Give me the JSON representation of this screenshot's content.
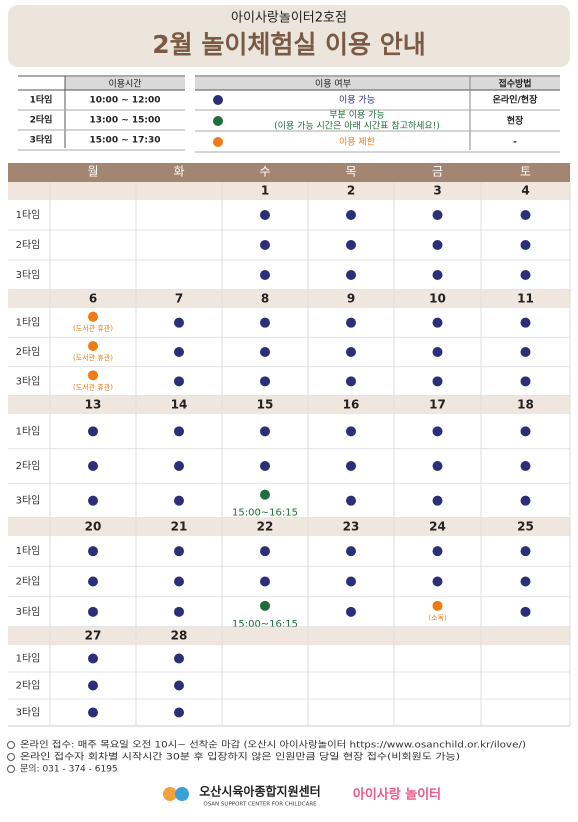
{
  "header": {
    "subtitle": "아이사랑놀이터2호점",
    "title": "2월 놀이체험실 이용 안내"
  },
  "time_table": {
    "header": "이용시간",
    "rows": [
      [
        "1타임",
        "10:00 ~ 12:00"
      ],
      [
        "2타임",
        "13:00 ~ 15:00"
      ],
      [
        "3타임",
        "15:00 ~ 17:30"
      ]
    ]
  },
  "legend": {
    "headers": [
      "이용 여부",
      "접수방법"
    ],
    "items": [
      {
        "label": "이용 가능",
        "color": "#2b2f7a",
        "method": "온라인/현장"
      },
      {
        "label": "부분 이용 가능",
        "note": "(이용 가능 시간은 아래 시간표 참고하세요!)",
        "color": "#1f6e3c",
        "method": "현장"
      },
      {
        "label": "이용 제한",
        "color": "#f07a14",
        "method": "-"
      }
    ]
  },
  "calendar": {
    "weekdays": [
      "월",
      "화",
      "수",
      "목",
      "금",
      "토"
    ],
    "slot_labels": [
      "1타임",
      "2타임",
      "3타임"
    ],
    "weeks": [
      {
        "days": [
          {
            "date": null,
            "slots": [
              null,
              null,
              null
            ]
          },
          {
            "date": null,
            "slots": [
              null,
              null,
              null
            ]
          },
          {
            "date": 1,
            "slots": [
              0,
              0,
              0
            ]
          },
          {
            "date": 2,
            "slots": [
              0,
              0,
              0
            ]
          },
          {
            "date": 3,
            "slots": [
              0,
              0,
              0
            ]
          },
          {
            "date": 4,
            "slots": [
              0,
              0,
              0
            ]
          }
        ]
      },
      {
        "days": [
          {
            "date": 6,
            "slots": [
              2,
              2,
              2
            ],
            "notes": [
              "(도서관 휴관)",
              "(도서관 휴관)",
              "(도서관 휴관)"
            ]
          },
          {
            "date": 7,
            "slots": [
              0,
              0,
              0
            ]
          },
          {
            "date": 8,
            "slots": [
              0,
              0,
              0
            ]
          },
          {
            "date": 9,
            "slots": [
              0,
              0,
              0
            ]
          },
          {
            "date": 10,
            "slots": [
              0,
              0,
              0
            ]
          },
          {
            "date": 11,
            "slots": [
              0,
              0,
              0
            ]
          }
        ]
      },
      {
        "days": [
          {
            "date": 13,
            "slots": [
              0,
              0,
              0
            ]
          },
          {
            "date": 14,
            "slots": [
              0,
              0,
              0
            ]
          },
          {
            "date": 15,
            "slots": [
              0,
              0,
              1
            ],
            "notes": [
              null,
              null,
              "15:00~16:15"
            ]
          },
          {
            "date": 16,
            "slots": [
              0,
              0,
              0
            ]
          },
          {
            "date": 17,
            "slots": [
              0,
              0,
              0
            ]
          },
          {
            "date": 18,
            "slots": [
              0,
              0,
              0
            ]
          }
        ]
      },
      {
        "days": [
          {
            "date": 20,
            "slots": [
              0,
              0,
              0
            ]
          },
          {
            "date": 21,
            "slots": [
              0,
              0,
              0
            ]
          },
          {
            "date": 22,
            "slots": [
              0,
              0,
              1
            ],
            "notes": [
              null,
              null,
              "15:00~16:15"
            ]
          },
          {
            "date": 23,
            "slots": [
              0,
              0,
              0
            ]
          },
          {
            "date": 24,
            "slots": [
              0,
              0,
              2
            ],
            "notes": [
              null,
              null,
              "(소독)"
            ]
          },
          {
            "date": 25,
            "slots": [
              0,
              0,
              0
            ]
          }
        ]
      },
      {
        "days": [
          {
            "date": 27,
            "slots": [
              0,
              0,
              0
            ]
          },
          {
            "date": 28,
            "slots": [
              0,
              0,
              0
            ]
          },
          {
            "date": null,
            "slots": [
              null,
              null,
              null
            ]
          },
          {
            "date": null,
            "slots": [
              null,
              null,
              null
            ]
          },
          {
            "date": null,
            "slots": [
              null,
              null,
              null
            ]
          },
          {
            "date": null,
            "slots": [
              null,
              null,
              null
            ]
          }
        ]
      }
    ]
  },
  "notes": [
    "온라인 접수: 매주 목요일 오전 10시~ 선착순 마감 (오산시 아이사랑놀이터 https://www.osanchild.or.kr/ilove/)",
    "온라인 접수자 회차별 시작시간 30분 후 입장하지 않은 인원만큼 당일 현장 접수(비회원도 가능)",
    "문의: 031 - 374 - 6195"
  ],
  "logos": {
    "center": "오산시육아종합지원센터",
    "center_en": "OSAN SUPPORT CENTER FOR CHILDCARE",
    "playground": "아이사랑 놀이터"
  }
}
